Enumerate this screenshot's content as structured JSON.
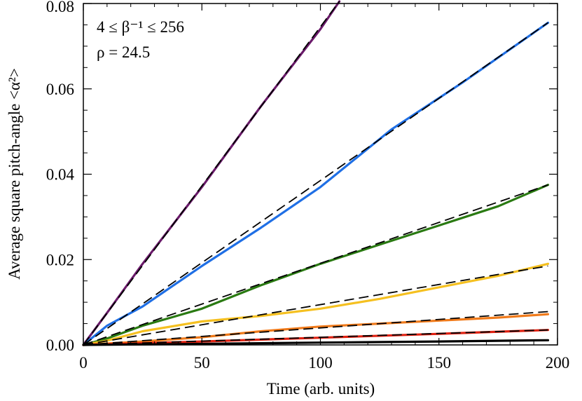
{
  "chart_data": {
    "type": "line",
    "title": "",
    "xlabel": "Time (arb. units)",
    "ylabel": "Average square pitch-angle <α²>",
    "xlim": [
      0,
      200
    ],
    "ylim": [
      0,
      0.08
    ],
    "xticks": [
      0,
      50,
      100,
      150,
      200
    ],
    "xtick_labels": [
      "0",
      "50",
      "100",
      "150",
      "200"
    ],
    "yticks": [
      0,
      0.02,
      0.04,
      0.06,
      0.08
    ],
    "ytick_labels": [
      "0.00",
      "0.02",
      "0.04",
      "0.06",
      "0.08"
    ],
    "grid": false,
    "annotations": [
      "4 ≤ β⁻¹ ≤ 256",
      "ρ = 24.5"
    ],
    "series": [
      {
        "color": "#6a1a6a",
        "x": [
          0,
          10,
          25,
          50,
          75,
          100,
          108
        ],
        "y": [
          0,
          0.0075,
          0.019,
          0.037,
          0.056,
          0.074,
          0.0805
        ]
      },
      {
        "color": "#1f6fe5",
        "x": [
          0,
          10,
          25,
          50,
          75,
          100,
          130,
          160,
          196
        ],
        "y": [
          0,
          0.0045,
          0.009,
          0.0185,
          0.0275,
          0.037,
          0.0505,
          0.0615,
          0.0755
        ]
      },
      {
        "color": "#2a7a12",
        "x": [
          0,
          10,
          25,
          50,
          75,
          100,
          125,
          150,
          175,
          196
        ],
        "y": [
          0,
          0.0015,
          0.0045,
          0.0085,
          0.014,
          0.019,
          0.0235,
          0.028,
          0.0325,
          0.0375
        ]
      },
      {
        "color": "#f5c020",
        "x": [
          0,
          10,
          25,
          50,
          75,
          100,
          125,
          150,
          175,
          196
        ],
        "y": [
          0,
          0.001,
          0.0032,
          0.0055,
          0.0068,
          0.0085,
          0.0108,
          0.0135,
          0.0162,
          0.019
        ]
      },
      {
        "color": "#f07a1a",
        "x": [
          0,
          25,
          50,
          75,
          100,
          125,
          150,
          175,
          196
        ],
        "y": [
          0,
          0.0008,
          0.0018,
          0.0032,
          0.0043,
          0.005,
          0.0057,
          0.0064,
          0.0072
        ]
      },
      {
        "color": "#e02010",
        "x": [
          0,
          50,
          100,
          150,
          196
        ],
        "y": [
          0,
          0.0008,
          0.0017,
          0.0026,
          0.0035
        ]
      },
      {
        "color": "#000000",
        "x": [
          0,
          50,
          100,
          150,
          196
        ],
        "y": [
          0,
          0.00025,
          0.00055,
          0.0008,
          0.0011
        ]
      }
    ],
    "fits": [
      {
        "x": [
          0,
          108
        ],
        "y": [
          0,
          0.0805
        ]
      },
      {
        "x": [
          0,
          196
        ],
        "y": [
          0,
          0.0755
        ]
      },
      {
        "x": [
          0,
          196
        ],
        "y": [
          0,
          0.0375
        ]
      },
      {
        "x": [
          0,
          196
        ],
        "y": [
          0,
          0.0185
        ]
      },
      {
        "x": [
          0,
          196
        ],
        "y": [
          0,
          0.0078
        ]
      },
      {
        "x": [
          0,
          196
        ],
        "y": [
          0,
          0.0035
        ]
      },
      {
        "x": [
          0,
          196
        ],
        "y": [
          0,
          0.0011
        ]
      }
    ]
  }
}
